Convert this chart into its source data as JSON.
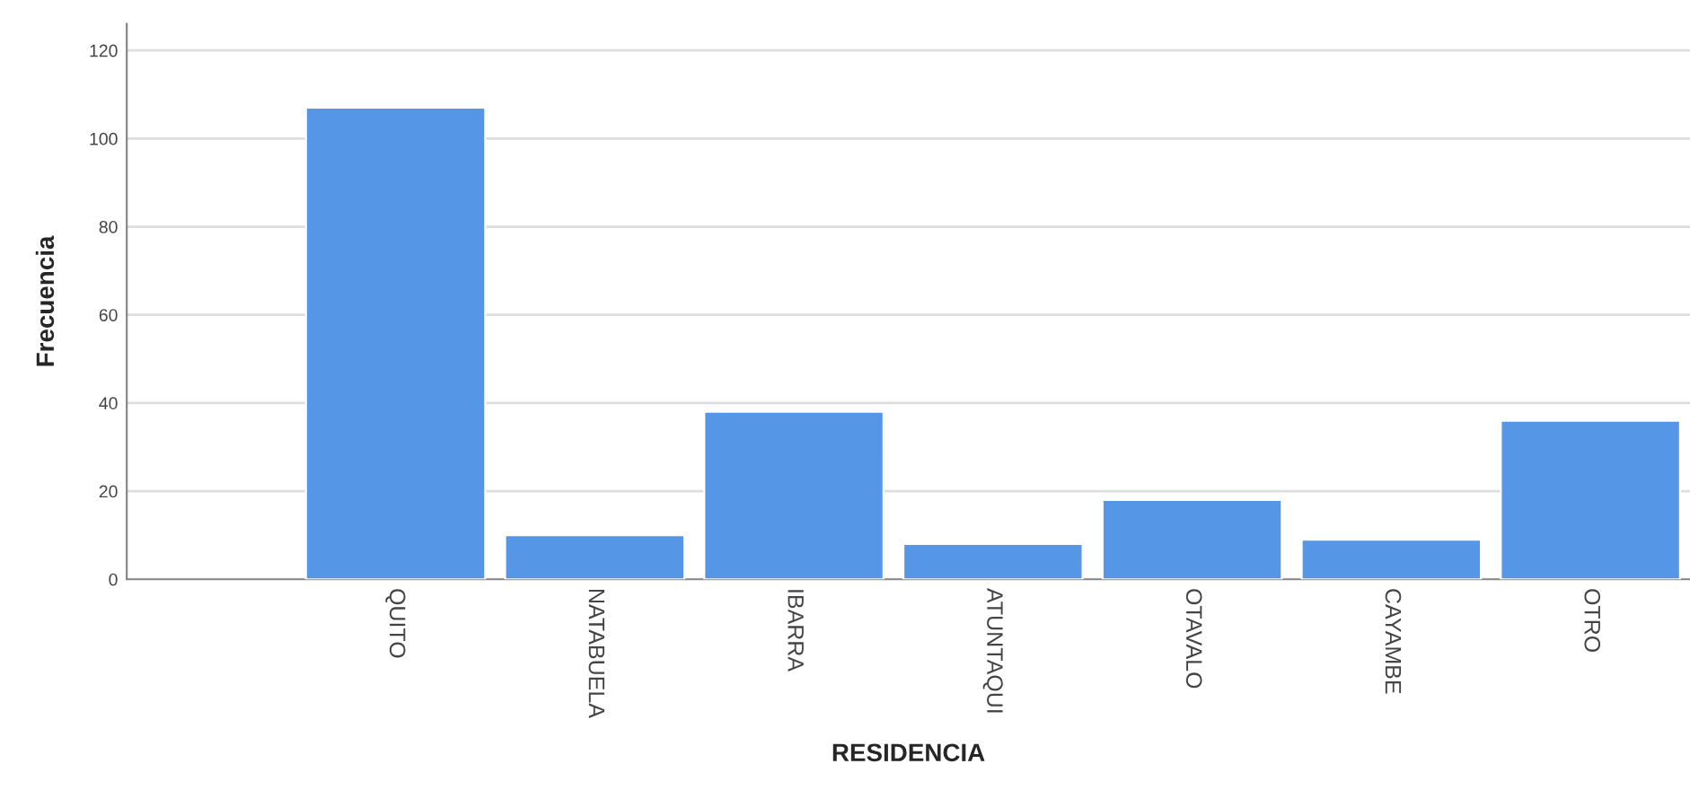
{
  "chart_data": {
    "type": "bar",
    "xlabel": "RESIDENCIA",
    "ylabel": "Frecuencia",
    "categories": [
      "QUITO",
      "NATABUELA",
      "IBARRA",
      "ATUNTAQUI",
      "OTAVALO",
      "CAYAMBE",
      "OTRO"
    ],
    "values": [
      107,
      10,
      38,
      8,
      18,
      9,
      36
    ],
    "color": "#5596e6",
    "ylim": [
      0,
      126
    ],
    "yticks": [
      0,
      20,
      40,
      60,
      80,
      100,
      120
    ],
    "grid": "y",
    "legend": false
  }
}
